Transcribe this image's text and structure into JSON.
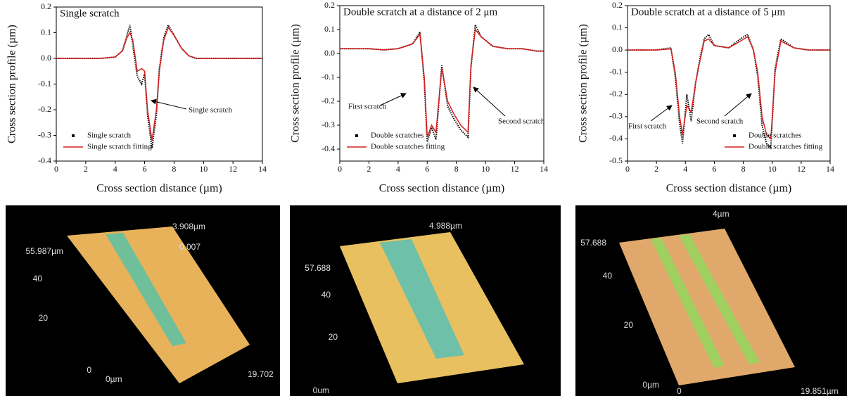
{
  "chart_data": [
    {
      "type": "line",
      "title": "Single scratch",
      "x_label": "Cross section distance (µm)",
      "y_label": "Cross section profile (µm)",
      "x": [
        0,
        1,
        2,
        3,
        4,
        4.5,
        4.8,
        5.0,
        5.2,
        5.5,
        5.8,
        6.0,
        6.2,
        6.5,
        6.8,
        7.0,
        7.3,
        7.6,
        8.0,
        8.5,
        9.0,
        9.5,
        10,
        11,
        12,
        13,
        14
      ],
      "series": [
        {
          "name": "Single scratch",
          "color": "#000000",
          "values": [
            0,
            0,
            0,
            0,
            0.005,
            0.03,
            0.09,
            0.13,
            0.05,
            -0.07,
            -0.1,
            -0.06,
            -0.22,
            -0.35,
            -0.22,
            -0.04,
            0.08,
            0.13,
            0.09,
            0.04,
            0.01,
            0,
            0,
            0,
            0,
            0,
            0
          ]
        },
        {
          "name": "Single scratch fitting",
          "color": "#d62020",
          "values": [
            0,
            0,
            0,
            0,
            0.005,
            0.03,
            0.08,
            0.1,
            0.07,
            -0.05,
            -0.04,
            -0.05,
            -0.2,
            -0.32,
            -0.2,
            -0.05,
            0.07,
            0.12,
            0.09,
            0.04,
            0.01,
            0,
            0,
            0,
            0,
            0,
            0
          ]
        }
      ],
      "annotations": [
        "Single scratch"
      ],
      "xlim": [
        0,
        14
      ],
      "xticks": [
        0,
        2,
        4,
        6,
        8,
        10,
        12,
        14
      ],
      "ylim": [
        -0.4,
        0.2
      ],
      "yticks": [
        -0.4,
        -0.3,
        -0.2,
        -0.1,
        {
          "value": 0,
          "label": "0.0"
        },
        0.1,
        0.2
      ],
      "legend": "lower left"
    },
    {
      "type": "line",
      "title": "Double scratch at a distance of 2 μm",
      "x_label": "Cross section distance (µm)",
      "y_label": "Cross section profile (µm)",
      "x": [
        0,
        1,
        2,
        3,
        4,
        5,
        5.5,
        5.8,
        6.0,
        6.3,
        6.6,
        7.0,
        7.4,
        7.8,
        8.3,
        8.8,
        9.0,
        9.3,
        9.7,
        10.5,
        11.5,
        12.5,
        13.5,
        14
      ],
      "series": [
        {
          "name": "Double scratches",
          "color": "#000000",
          "values": [
            0.02,
            0.02,
            0.02,
            0.015,
            0.02,
            0.04,
            0.09,
            -0.12,
            -0.37,
            -0.31,
            -0.36,
            -0.05,
            -0.22,
            -0.27,
            -0.32,
            -0.35,
            -0.06,
            0.12,
            0.07,
            0.03,
            0.02,
            0.02,
            0.01,
            0.01
          ]
        },
        {
          "name": "Double scratches fitting",
          "color": "#d62020",
          "values": [
            0.02,
            0.02,
            0.02,
            0.015,
            0.02,
            0.04,
            0.08,
            -0.1,
            -0.35,
            -0.3,
            -0.33,
            -0.06,
            -0.2,
            -0.25,
            -0.3,
            -0.33,
            -0.05,
            0.1,
            0.07,
            0.03,
            0.02,
            0.02,
            0.01,
            0.01
          ]
        }
      ],
      "annotations": [
        "First scratch",
        "Second scratch"
      ],
      "xlim": [
        0,
        14
      ],
      "xticks": [
        0,
        2,
        4,
        6,
        8,
        10,
        12,
        14
      ],
      "ylim": [
        -0.45,
        0.2
      ],
      "yticks": [
        -0.4,
        -0.3,
        -0.2,
        -0.1,
        {
          "value": 0,
          "label": "0.0"
        },
        0.1,
        0.2
      ],
      "legend": "lower left"
    },
    {
      "type": "line",
      "title": "Double scratch at a distance of 5 μm",
      "x_label": "Cross section distance (µm)",
      "y_label": "Cross section profile (µm)",
      "x": [
        0,
        1,
        2,
        3,
        3.3,
        3.6,
        3.8,
        4.1,
        4.4,
        4.7,
        5.0,
        5.3,
        5.6,
        6.0,
        7.0,
        7.8,
        8.3,
        8.7,
        9.0,
        9.3,
        9.6,
        9.9,
        10.2,
        10.6,
        11.5,
        12.5,
        14
      ],
      "series": [
        {
          "name": "Double scratches",
          "color": "#000000",
          "values": [
            0,
            0,
            0,
            0.01,
            -0.12,
            -0.33,
            -0.42,
            -0.2,
            -0.32,
            -0.15,
            -0.04,
            0.05,
            0.07,
            0.02,
            0.01,
            0.05,
            0.07,
            0.0,
            -0.12,
            -0.34,
            -0.42,
            -0.44,
            -0.08,
            0.05,
            0.01,
            0,
            0
          ]
        },
        {
          "name": "Double scratches fitting",
          "color": "#d62020",
          "values": [
            0,
            0,
            0,
            0.005,
            -0.1,
            -0.3,
            -0.38,
            -0.25,
            -0.28,
            -0.15,
            -0.05,
            0.04,
            0.05,
            0.02,
            0.01,
            0.04,
            0.06,
            0.0,
            -0.1,
            -0.3,
            -0.38,
            -0.4,
            -0.1,
            0.04,
            0.01,
            0,
            0
          ]
        }
      ],
      "annotations": [
        "First scratch",
        "Second scratch"
      ],
      "xlim": [
        0,
        14
      ],
      "xticks": [
        0,
        2,
        4,
        6,
        8,
        10,
        12,
        14
      ],
      "ylim": [
        -0.5,
        0.2
      ],
      "yticks": [
        -0.5,
        -0.4,
        -0.3,
        -0.2,
        -0.1,
        {
          "value": 0,
          "label": "0.0"
        },
        0.1,
        0.2
      ],
      "legend": "lower right"
    }
  ],
  "surface_images": [
    {
      "labels": [
        "3.908µm",
        "55.987µm",
        "0.007",
        "40",
        "20",
        "0",
        "0µm",
        "19.702"
      ]
    },
    {
      "labels": [
        "4.988µm",
        "57.688",
        "40",
        "20",
        "0um"
      ]
    },
    {
      "labels": [
        "4µm",
        "57.688",
        "40",
        "20",
        "0µm",
        "0",
        "19.851µm"
      ]
    }
  ]
}
